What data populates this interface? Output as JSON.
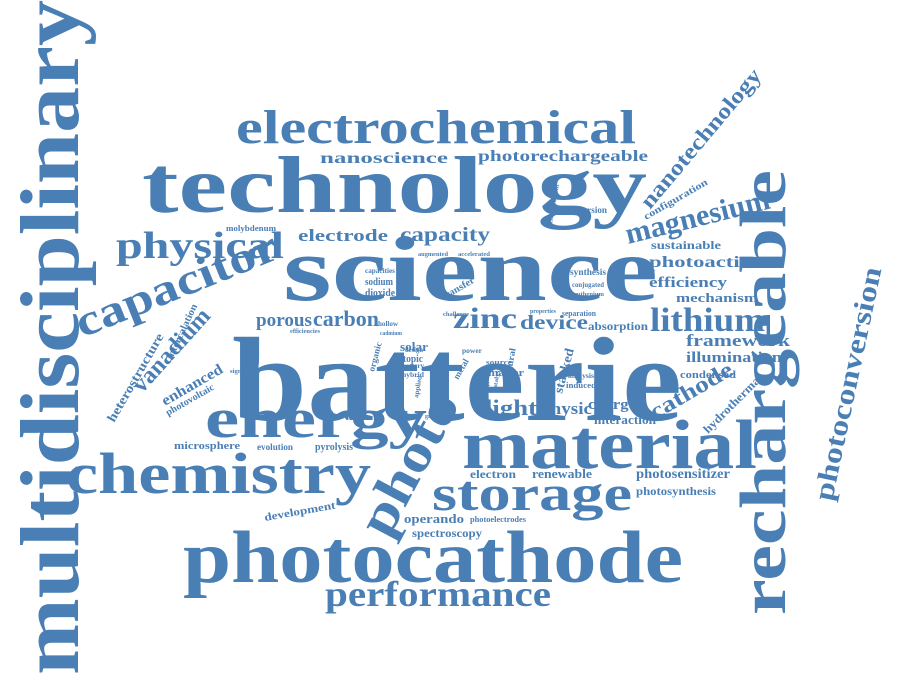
{
  "colors": {
    "word": "#4a7fb5",
    "background": "#ffffff"
  },
  "words": [
    "batterie",
    "science",
    "technology",
    "material",
    "multidisciplinary",
    "rechargeable",
    "photocathode",
    "electrochemical",
    "energy",
    "chemistry",
    "storage",
    "photo",
    "capacitor",
    "performance",
    "physical",
    "photoconversion",
    "lithium",
    "magnesium",
    "nanotechnology",
    "nanoscience",
    "photorechargeable",
    "zinc",
    "carbon",
    "porous",
    "vanadium",
    "electrode",
    "capacity",
    "cathode",
    "device",
    "light",
    "physic",
    "framework",
    "illumination",
    "photoactive",
    "efficiency",
    "sustainable",
    "mechanism",
    "heterostructure",
    "enhanced",
    "photovoltaic",
    "intercalation",
    "charge",
    "interaction",
    "absorption",
    "condensed",
    "hydrothermal",
    "photosensitizer",
    "photosynthesis",
    "renewable",
    "electron",
    "operando",
    "spectroscopy",
    "development",
    "microsphere",
    "evolution",
    "pyrolysis",
    "configuration",
    "conversion",
    "enhancement",
    "molybdenum",
    "photoelectrodes",
    "dioxide",
    "solar",
    "synthesis",
    "separation",
    "sodium",
    "capacities",
    "transfer",
    "organic",
    "topic",
    "hybrid",
    "battery",
    "power",
    "matter",
    "source",
    "stacked",
    "induced",
    "structural",
    "analysis",
    "efficiencies",
    "significant",
    "design",
    "hollow",
    "cadmium",
    "conjugated",
    "ruthenium",
    "accelerated",
    "augmented",
    "graphene",
    "metal",
    "redox",
    "challenge",
    "properties",
    "applied",
    "catalyst"
  ]
}
